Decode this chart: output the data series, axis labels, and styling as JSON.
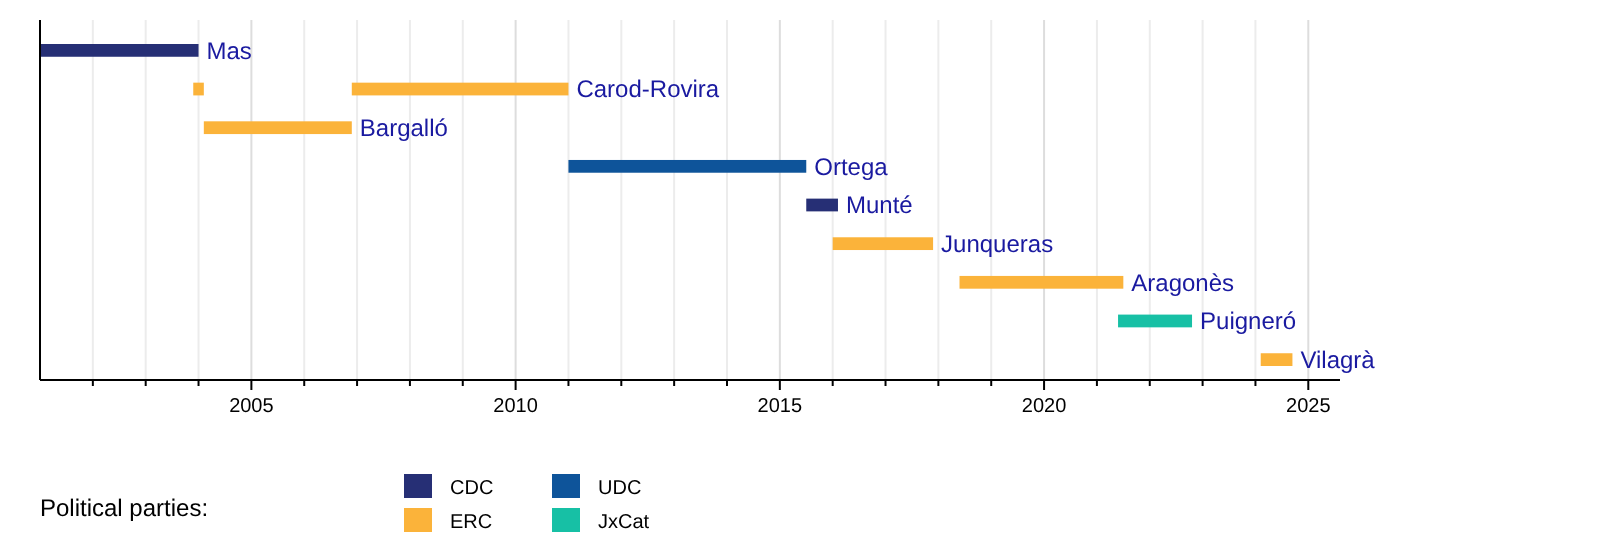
{
  "chart_data": {
    "type": "bar",
    "orientation": "horizontal",
    "categories": [
      "Mas",
      "Carod-Rovira",
      "Bargalló",
      "Ortega",
      "Munté",
      "Junqueras",
      "Aragonès",
      "Puigneró",
      "Vilagrà"
    ],
    "series": [
      {
        "name": "CDC",
        "color": "#262f75",
        "values": [
          3.0,
          null,
          null,
          null,
          0.6,
          null,
          null,
          null,
          null
        ],
        "base": [
          2001.0,
          null,
          null,
          null,
          2015.5,
          null,
          null,
          null,
          null
        ]
      },
      {
        "name": "ERC",
        "color": "#fbb33a",
        "values": [
          null,
          4.1,
          2.8,
          null,
          null,
          1.9,
          3.1,
          null,
          0.6
        ],
        "base": [
          null,
          2006.9,
          2004.1,
          null,
          null,
          2016.0,
          2018.4,
          null,
          2024.1
        ]
      },
      {
        "name": "UDC",
        "color": "#0e549a",
        "values": [
          null,
          null,
          null,
          4.5,
          null,
          null,
          null,
          null,
          null
        ],
        "base": [
          null,
          null,
          null,
          2011.0,
          null,
          null,
          null,
          null,
          null
        ]
      },
      {
        "name": "JxCat",
        "color": "#17c0a5",
        "values": [
          null,
          null,
          null,
          null,
          null,
          null,
          null,
          1.4,
          null
        ],
        "base": [
          null,
          null,
          null,
          null,
          null,
          null,
          null,
          2021.4,
          null
        ]
      },
      {
        "color": "#fbb33a",
        "values": [
          null,
          0.2,
          null,
          null,
          null,
          null,
          null,
          null,
          null
        ],
        "base": [
          null,
          2003.9,
          null,
          null,
          null,
          null,
          null,
          null,
          null
        ]
      }
    ],
    "xlim": [
      2001,
      2025.6
    ],
    "xticks": [
      {
        "value": 2002,
        "label": null
      },
      {
        "value": 2003,
        "label": null
      },
      {
        "value": 2004,
        "label": null
      },
      2005,
      {
        "value": 2006,
        "label": null
      },
      {
        "value": 2007,
        "label": null
      },
      {
        "value": 2008,
        "label": null
      },
      {
        "value": 2009,
        "label": null
      },
      2010,
      {
        "value": 2011,
        "label": null
      },
      {
        "value": 2012,
        "label": null
      },
      {
        "value": 2013,
        "label": null
      },
      {
        "value": 2014,
        "label": null
      },
      2015,
      {
        "value": 2016,
        "label": null
      },
      {
        "value": 2017,
        "label": null
      },
      {
        "value": 2018,
        "label": null
      },
      {
        "value": 2019,
        "label": null
      },
      2020,
      {
        "value": 2021,
        "label": null
      },
      {
        "value": 2022,
        "label": null
      },
      {
        "value": 2023,
        "label": null
      },
      {
        "value": 2024,
        "label": null
      },
      2025
    ],
    "grid": "x",
    "legend": "bottom",
    "legend_title": "Political parties:",
    "tick_labels": "x"
  }
}
